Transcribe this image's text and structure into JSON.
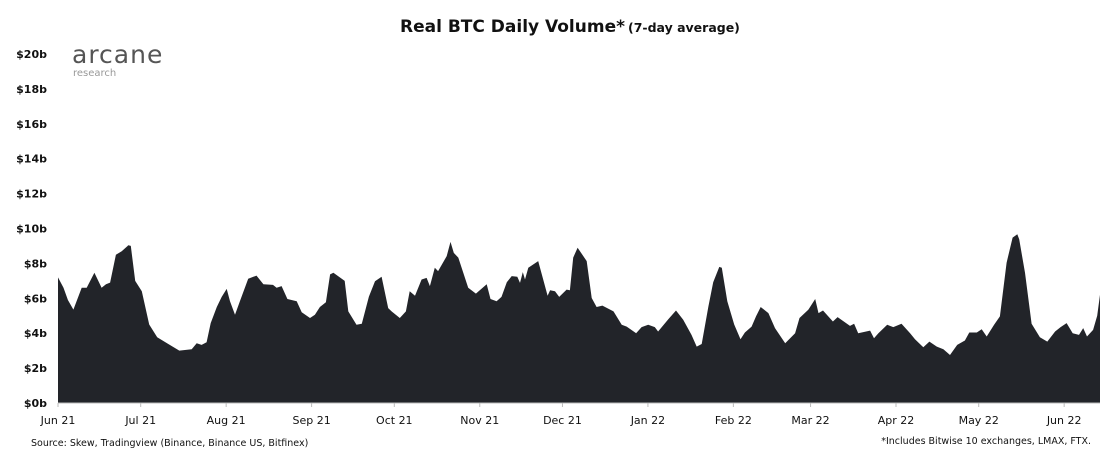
{
  "logo": {
    "main": "arcane",
    "sub": "research"
  },
  "source": "Source: Skew, Tradingview (Binance, Binance US, Bitfinex)",
  "footnote": "*Includes Bitwise 10 exchanges, LMAX, FTX.",
  "chart_data": {
    "type": "area",
    "title": "Real BTC Daily Volume*",
    "subtitle": "(7-day average)",
    "xlabel": "",
    "ylabel": "",
    "ylim": [
      0,
      20
    ],
    "x_range_days": [
      0,
      378
    ],
    "y_ticks": [
      {
        "value": 0,
        "label": "$0b"
      },
      {
        "value": 2,
        "label": "$2b"
      },
      {
        "value": 4,
        "label": "$4b"
      },
      {
        "value": 6,
        "label": "$6b"
      },
      {
        "value": 8,
        "label": "$8b"
      },
      {
        "value": 10,
        "label": "$10b"
      },
      {
        "value": 12,
        "label": "$12b"
      },
      {
        "value": 14,
        "label": "$14b"
      },
      {
        "value": 16,
        "label": "$16b"
      },
      {
        "value": 18,
        "label": "$18b"
      },
      {
        "value": 20,
        "label": "$20b"
      }
    ],
    "x_ticks": [
      {
        "day": 0,
        "label": "Jun 21"
      },
      {
        "day": 30,
        "label": "Jul 21"
      },
      {
        "day": 61,
        "label": "Aug 21"
      },
      {
        "day": 92,
        "label": "Sep 21"
      },
      {
        "day": 122,
        "label": "Oct 21"
      },
      {
        "day": 153,
        "label": "Nov 21"
      },
      {
        "day": 183,
        "label": "Dec 21"
      },
      {
        "day": 214,
        "label": "Jan 22"
      },
      {
        "day": 245,
        "label": "Feb 22"
      },
      {
        "day": 273,
        "label": "Mar 22"
      },
      {
        "day": 304,
        "label": "Apr 22"
      },
      {
        "day": 334,
        "label": "May 22"
      },
      {
        "day": 365,
        "label": "Jun 22"
      }
    ],
    "grid": false,
    "color": "#222429",
    "series": [
      {
        "name": "Real BTC Daily Volume (7-day average), $b",
        "points": [
          [
            0,
            7.2
          ],
          [
            2,
            6.6
          ],
          [
            3.6,
            5.9
          ],
          [
            5.6,
            5.35
          ],
          [
            8.6,
            6.6
          ],
          [
            10.4,
            6.6
          ],
          [
            13.2,
            7.46
          ],
          [
            15.8,
            6.6
          ],
          [
            17.4,
            6.8
          ],
          [
            18.9,
            6.9
          ],
          [
            21,
            8.5
          ],
          [
            23.1,
            8.7
          ],
          [
            25.5,
            9.04
          ],
          [
            26.4,
            9.0
          ],
          [
            28,
            7.0
          ],
          [
            30.4,
            6.4
          ],
          [
            33.1,
            4.5
          ],
          [
            36,
            3.77
          ],
          [
            40,
            3.38
          ],
          [
            44,
            3.0
          ],
          [
            48.5,
            3.08
          ],
          [
            50.3,
            3.42
          ],
          [
            52.1,
            3.33
          ],
          [
            53.9,
            3.48
          ],
          [
            55.4,
            4.58
          ],
          [
            57.6,
            5.5
          ],
          [
            59.4,
            6.08
          ],
          [
            61.2,
            6.54
          ],
          [
            62.4,
            5.83
          ],
          [
            64.2,
            5.06
          ],
          [
            66,
            5.83
          ],
          [
            69,
            7.12
          ],
          [
            72,
            7.3
          ],
          [
            74.5,
            6.8
          ],
          [
            78,
            6.77
          ],
          [
            79.3,
            6.6
          ],
          [
            81.1,
            6.7
          ],
          [
            83.2,
            5.96
          ],
          [
            86.6,
            5.83
          ],
          [
            88.4,
            5.2
          ],
          [
            91.4,
            4.87
          ],
          [
            93.2,
            5.06
          ],
          [
            95,
            5.5
          ],
          [
            97.2,
            5.77
          ],
          [
            98.7,
            7.37
          ],
          [
            99.9,
            7.46
          ],
          [
            104,
            7.0
          ],
          [
            105.3,
            5.25
          ],
          [
            108.3,
            4.48
          ],
          [
            110.2,
            4.54
          ],
          [
            112.8,
            6.1
          ],
          [
            115,
            6.98
          ],
          [
            117.4,
            7.23
          ],
          [
            119.8,
            5.44
          ],
          [
            121,
            5.25
          ],
          [
            124,
            4.87
          ],
          [
            126.2,
            5.25
          ],
          [
            127.6,
            6.4
          ],
          [
            129.5,
            6.15
          ],
          [
            131.9,
            7.08
          ],
          [
            133.7,
            7.17
          ],
          [
            134.9,
            6.7
          ],
          [
            136.7,
            7.75
          ],
          [
            137.9,
            7.56
          ],
          [
            141,
            8.42
          ],
          [
            142.4,
            9.23
          ],
          [
            143.6,
            8.6
          ],
          [
            145.2,
            8.33
          ],
          [
            148.8,
            6.6
          ],
          [
            151.6,
            6.27
          ],
          [
            155.5,
            6.8
          ],
          [
            156.9,
            5.96
          ],
          [
            159.1,
            5.83
          ],
          [
            160.9,
            6.08
          ],
          [
            162.8,
            6.92
          ],
          [
            164.6,
            7.27
          ],
          [
            166.6,
            7.23
          ],
          [
            167.6,
            6.88
          ],
          [
            168.6,
            7.5
          ],
          [
            169.4,
            7.08
          ],
          [
            170.6,
            7.75
          ],
          [
            174.2,
            8.13
          ],
          [
            176,
            7.08
          ],
          [
            177.6,
            6.15
          ],
          [
            178.5,
            6.46
          ],
          [
            180.3,
            6.4
          ],
          [
            181.8,
            6.08
          ],
          [
            184.5,
            6.5
          ],
          [
            185.7,
            6.46
          ],
          [
            186.9,
            8.33
          ],
          [
            188.5,
            8.9
          ],
          [
            191.8,
            8.13
          ],
          [
            193.6,
            6.02
          ],
          [
            195.4,
            5.5
          ],
          [
            197.5,
            5.58
          ],
          [
            201.5,
            5.25
          ],
          [
            204.5,
            4.48
          ],
          [
            206.3,
            4.38
          ],
          [
            209.7,
            4.0
          ],
          [
            211.7,
            4.35
          ],
          [
            214.1,
            4.48
          ],
          [
            216.5,
            4.35
          ],
          [
            217.7,
            4.1
          ],
          [
            221.4,
            4.8
          ],
          [
            224.2,
            5.3
          ],
          [
            226.8,
            4.77
          ],
          [
            229.8,
            3.9
          ],
          [
            231.7,
            3.23
          ],
          [
            233.5,
            3.38
          ],
          [
            235.9,
            5.5
          ],
          [
            237.7,
            6.92
          ],
          [
            239.9,
            7.8
          ],
          [
            240.8,
            7.75
          ],
          [
            242.8,
            5.83
          ],
          [
            245.3,
            4.5
          ],
          [
            247.6,
            3.65
          ],
          [
            249.2,
            4.04
          ],
          [
            251.6,
            4.38
          ],
          [
            253.2,
            4.96
          ],
          [
            254.9,
            5.5
          ],
          [
            257.7,
            5.15
          ],
          [
            260.1,
            4.29
          ],
          [
            263.8,
            3.42
          ],
          [
            267.4,
            4.0
          ],
          [
            269,
            4.87
          ],
          [
            272.2,
            5.35
          ],
          [
            274.7,
            5.96
          ],
          [
            275.9,
            5.15
          ],
          [
            277.5,
            5.3
          ],
          [
            281.1,
            4.67
          ],
          [
            282.8,
            4.92
          ],
          [
            287.3,
            4.42
          ],
          [
            288.8,
            4.54
          ],
          [
            290.3,
            4.0
          ],
          [
            294.6,
            4.15
          ],
          [
            296,
            3.71
          ],
          [
            297.6,
            4.0
          ],
          [
            300.8,
            4.48
          ],
          [
            303,
            4.35
          ],
          [
            306,
            4.54
          ],
          [
            309.1,
            4.0
          ],
          [
            310.9,
            3.65
          ],
          [
            313.9,
            3.19
          ],
          [
            316.1,
            3.52
          ],
          [
            318.8,
            3.23
          ],
          [
            321.2,
            3.08
          ],
          [
            323.6,
            2.75
          ],
          [
            326.2,
            3.33
          ],
          [
            329,
            3.58
          ],
          [
            330.6,
            4.04
          ],
          [
            333.3,
            4.04
          ],
          [
            335.1,
            4.23
          ],
          [
            336.9,
            3.81
          ],
          [
            339.6,
            4.48
          ],
          [
            341.7,
            4.96
          ],
          [
            344.1,
            8.04
          ],
          [
            346.3,
            9.48
          ],
          [
            348,
            9.67
          ],
          [
            348.7,
            9.38
          ],
          [
            350.8,
            7.46
          ],
          [
            353.2,
            4.54
          ],
          [
            356.2,
            3.77
          ],
          [
            358.9,
            3.52
          ],
          [
            361.7,
            4.1
          ],
          [
            363.7,
            4.35
          ],
          [
            365.9,
            4.58
          ],
          [
            368.1,
            4.0
          ],
          [
            370.4,
            3.9
          ],
          [
            371.9,
            4.29
          ],
          [
            373.3,
            3.81
          ],
          [
            375.5,
            4.19
          ],
          [
            377,
            5.0
          ],
          [
            378,
            6.2
          ]
        ]
      }
    ]
  }
}
